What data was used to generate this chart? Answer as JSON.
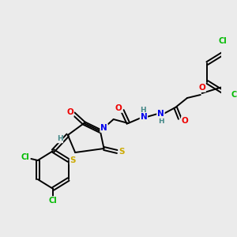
{
  "bg_color": "#ebebeb",
  "atom_colors": {
    "C": "#000000",
    "N": "#0000ee",
    "O": "#ee0000",
    "S": "#ccaa00",
    "Cl": "#00bb00",
    "H": "#448888"
  },
  "bond_color": "#000000",
  "bond_width": 1.4,
  "figsize": [
    3.0,
    3.0
  ],
  "dpi": 100
}
